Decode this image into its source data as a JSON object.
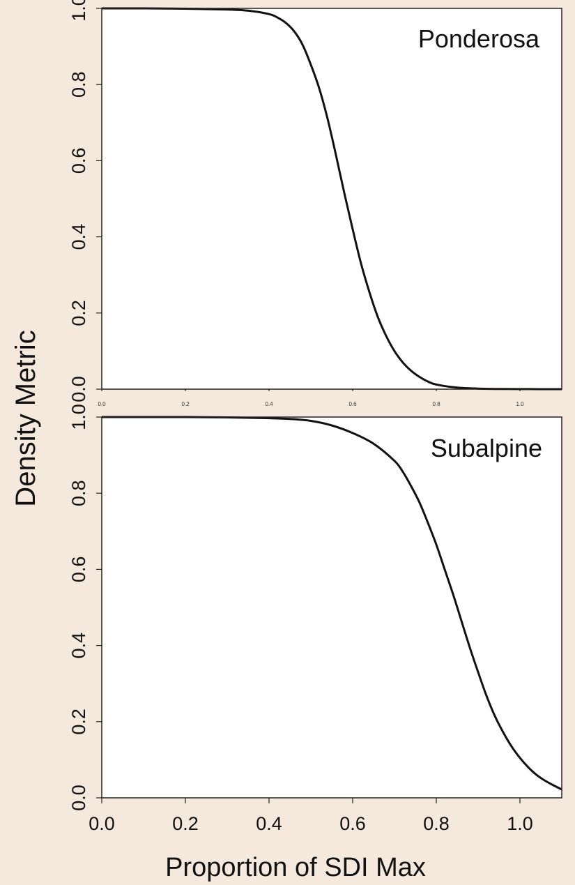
{
  "figure": {
    "ylabel": "Density Metric",
    "xlabel": "Proportion of SDI Max"
  },
  "chart_data": [
    {
      "type": "line",
      "title": "Ponderosa",
      "xlim": [
        0,
        1.1
      ],
      "ylim": [
        0,
        1.0
      ],
      "xticks": [
        0.0,
        0.2,
        0.4,
        0.6,
        0.8,
        1.0
      ],
      "xtick_labels": [
        "0.0",
        "0.2",
        "0.4",
        "0.6",
        "0.8",
        "1.0"
      ],
      "yticks": [
        0.0,
        0.2,
        0.4,
        0.6,
        0.8,
        1.0
      ],
      "ytick_labels": [
        "0.0",
        "0.2",
        "0.4",
        "0.6",
        "0.8",
        "1.0"
      ],
      "series": [
        {
          "x": [
            0.0,
            0.1,
            0.2,
            0.3,
            0.35,
            0.4,
            0.42,
            0.44,
            0.46,
            0.48,
            0.5,
            0.52,
            0.54,
            0.56,
            0.58,
            0.6,
            0.62,
            0.64,
            0.66,
            0.68,
            0.7,
            0.72,
            0.74,
            0.76,
            0.78,
            0.8,
            0.85,
            0.9,
            0.95,
            1.0,
            1.1
          ],
          "y": [
            1.0,
            1.0,
            0.999,
            0.997,
            0.994,
            0.985,
            0.976,
            0.962,
            0.94,
            0.905,
            0.852,
            0.79,
            0.71,
            0.615,
            0.515,
            0.42,
            0.33,
            0.255,
            0.19,
            0.14,
            0.1,
            0.07,
            0.048,
            0.032,
            0.02,
            0.012,
            0.004,
            0.0015,
            0.0005,
            0.0002,
            0.0
          ]
        }
      ]
    },
    {
      "type": "line",
      "title": "Subalpine",
      "xlim": [
        0,
        1.1
      ],
      "ylim": [
        0,
        1.0
      ],
      "xticks": [
        0.0,
        0.2,
        0.4,
        0.6,
        0.8,
        1.0
      ],
      "xtick_labels": [
        "0.0",
        "0.2",
        "0.4",
        "0.6",
        "0.8",
        "1.0"
      ],
      "yticks": [
        0.0,
        0.2,
        0.4,
        0.6,
        0.8,
        1.0
      ],
      "ytick_labels": [
        "0.0",
        "0.2",
        "0.4",
        "0.6",
        "0.8",
        "1.0"
      ],
      "series": [
        {
          "x": [
            0.0,
            0.1,
            0.2,
            0.3,
            0.4,
            0.45,
            0.5,
            0.55,
            0.6,
            0.65,
            0.7,
            0.72,
            0.74,
            0.76,
            0.78,
            0.8,
            0.82,
            0.84,
            0.86,
            0.88,
            0.9,
            0.92,
            0.94,
            0.96,
            0.98,
            1.0,
            1.02,
            1.04,
            1.06,
            1.08,
            1.1
          ],
          "y": [
            1.0,
            1.0,
            1.0,
            0.999,
            0.997,
            0.995,
            0.99,
            0.978,
            0.958,
            0.93,
            0.885,
            0.856,
            0.818,
            0.775,
            0.722,
            0.665,
            0.6,
            0.535,
            0.465,
            0.395,
            0.33,
            0.268,
            0.215,
            0.172,
            0.135,
            0.105,
            0.08,
            0.06,
            0.045,
            0.033,
            0.022
          ]
        }
      ]
    }
  ]
}
